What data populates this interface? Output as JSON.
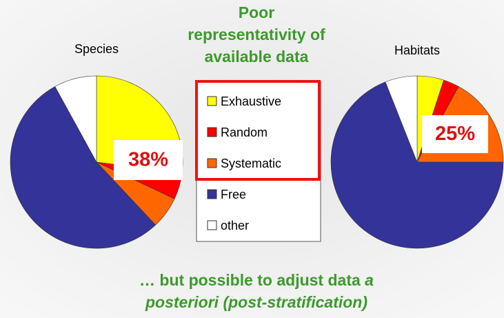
{
  "headline": [
    "Poor",
    "representativity of",
    "available data"
  ],
  "footer": {
    "line1": "… but possible to adjust data ",
    "line1_italic": "a",
    "line2_italic": "posteriori (post-stratification)"
  },
  "chart_data": [
    {
      "type": "pie",
      "title": "Species",
      "categories": [
        "Exhaustive",
        "Random",
        "Systematic",
        "Free",
        "other"
      ],
      "colors": [
        "#ffff00",
        "#ff0000",
        "#ff6600",
        "#333399",
        "#ffffff"
      ],
      "values": [
        27,
        5,
        6,
        54,
        8
      ],
      "annotation": "38%"
    },
    {
      "type": "pie",
      "title": "Habitats",
      "categories": [
        "Exhaustive",
        "Random",
        "Systematic",
        "Free",
        "other"
      ],
      "colors": [
        "#ffff00",
        "#ff0000",
        "#ff6600",
        "#333399",
        "#ffffff"
      ],
      "values": [
        5,
        3,
        17,
        69,
        6
      ],
      "annotation": "25%"
    }
  ]
}
